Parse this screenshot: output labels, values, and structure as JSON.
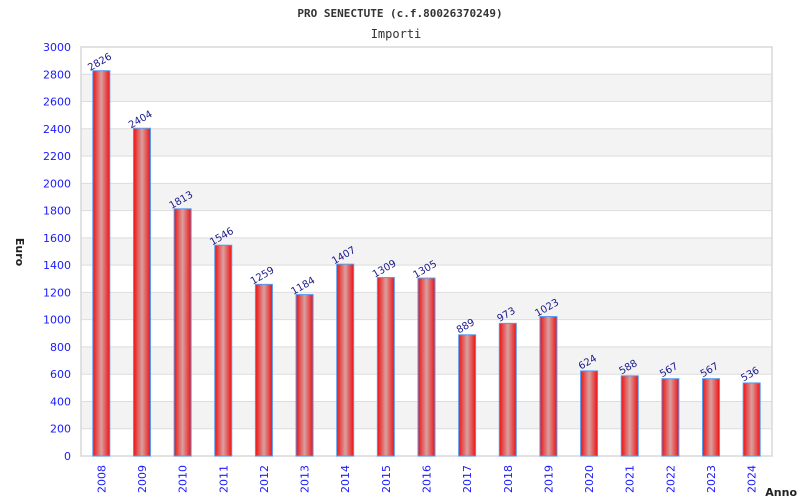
{
  "chart_data": {
    "type": "bar",
    "title": "PRO SENECTUTE (c.f.80026370249)",
    "subtitle": "Importi",
    "xlabel": "Anno",
    "ylabel": "Euro",
    "categories": [
      "2008",
      "2009",
      "2010",
      "2011",
      "2012",
      "2013",
      "2014",
      "2015",
      "2016",
      "2017",
      "2018",
      "2019",
      "2020",
      "2021",
      "2022",
      "2023",
      "2024"
    ],
    "values": [
      2826,
      2404,
      1813,
      1546,
      1259,
      1184,
      1407,
      1309,
      1305,
      889,
      973,
      1023,
      624,
      588,
      567,
      567,
      536
    ],
    "ylim": [
      0,
      3000
    ],
    "yticks": [
      0,
      200,
      400,
      600,
      800,
      1000,
      1200,
      1400,
      1600,
      1800,
      2000,
      2200,
      2400,
      2600,
      2800,
      3000
    ],
    "grid": true,
    "legend": "none",
    "colors": {
      "bar": "#ee1111",
      "bar_highlight": "#d9a0a0",
      "bar_border": "#5599ee",
      "band": "#f3f3f3",
      "grid": "#dddddd",
      "tick": "#1a1aff",
      "label": "#1a1a8a"
    }
  }
}
